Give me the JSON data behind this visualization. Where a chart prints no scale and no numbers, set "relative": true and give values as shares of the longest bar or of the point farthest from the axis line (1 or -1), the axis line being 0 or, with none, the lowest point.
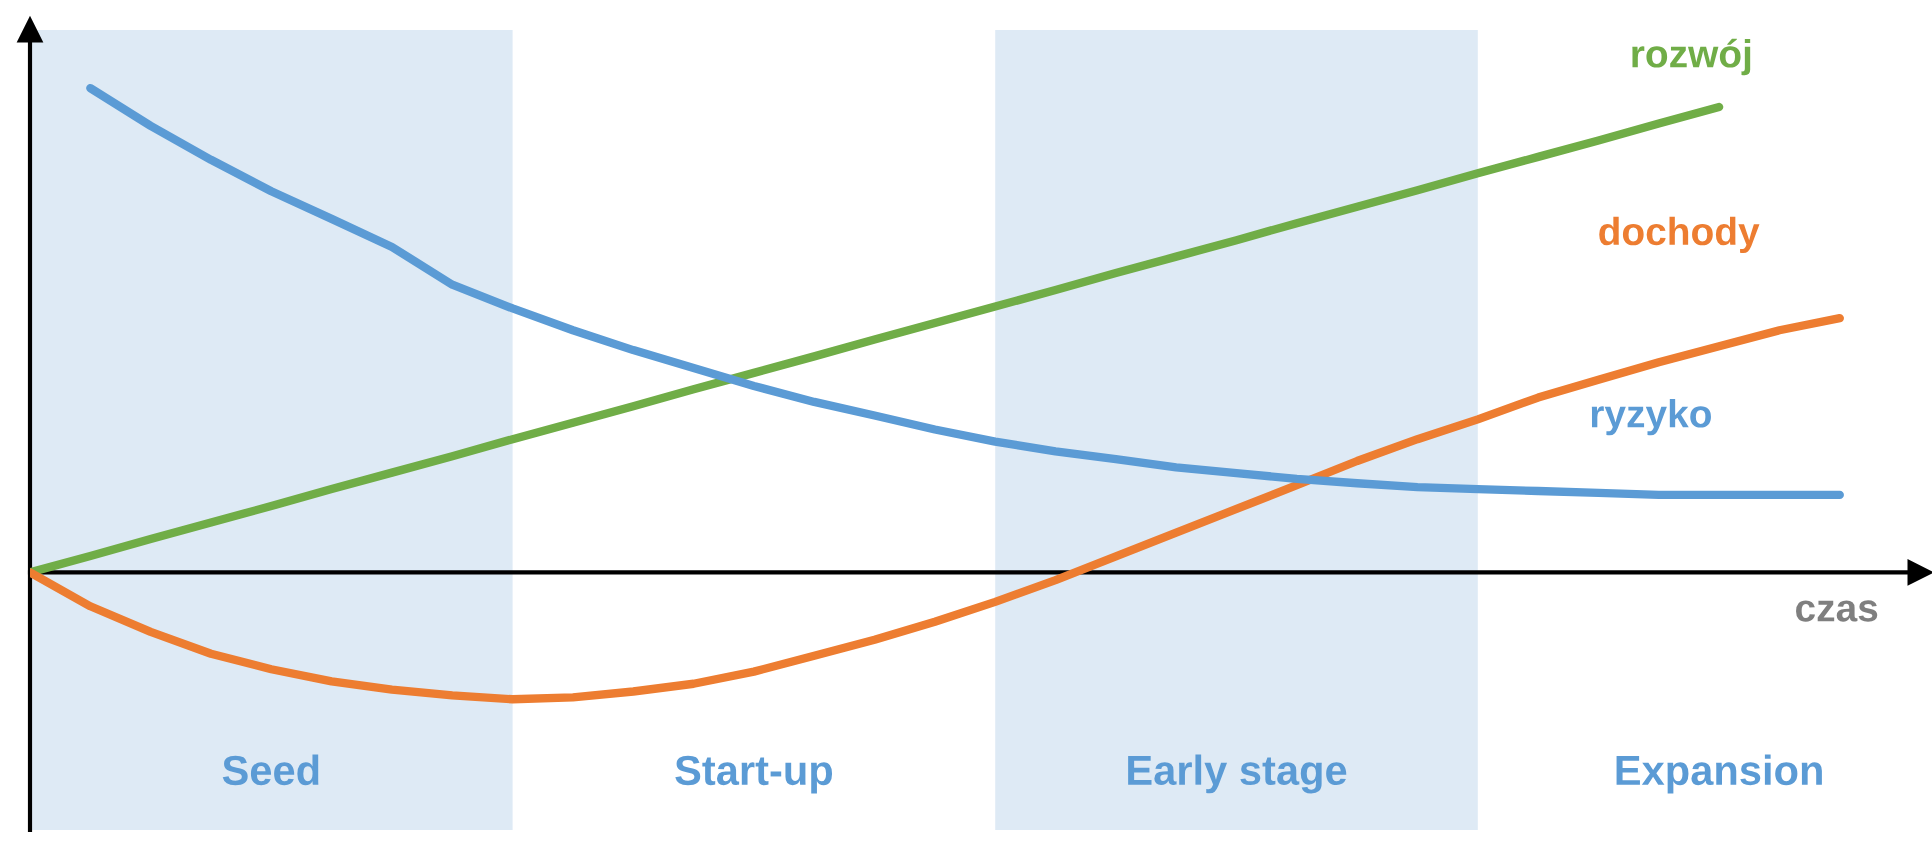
{
  "chart_data": {
    "type": "line",
    "relative": true,
    "xlabel": "czas",
    "legend": false,
    "marker": "none",
    "line_style": "solid",
    "categories": [
      null,
      null,
      null,
      null,
      null,
      null,
      null,
      null,
      null,
      null,
      null,
      null,
      null,
      null,
      null,
      null,
      null,
      null,
      null,
      null,
      null,
      null,
      null,
      null,
      null,
      null,
      null,
      null,
      null,
      null,
      null
    ],
    "annotations": [
      "Seed",
      "Start-up",
      "Early stage",
      "Expansion"
    ],
    "series": [
      {
        "name": "rozwój",
        "color": "#70ad47",
        "values": [
          0,
          0.034,
          0.069,
          0.103,
          0.137,
          0.172,
          0.206,
          0.24,
          0.275,
          0.309,
          0.343,
          0.378,
          0.412,
          0.446,
          0.481,
          0.515,
          0.549,
          0.583,
          0.618,
          0.652,
          0.686,
          0.721,
          0.755,
          0.789,
          0.824,
          0.858,
          0.892,
          0.927,
          0.961,
          null,
          null
        ]
      },
      {
        "name": "dochody",
        "color": "#ed7d31",
        "values": [
          0,
          -0.07,
          -0.123,
          -0.168,
          -0.2,
          -0.225,
          -0.242,
          -0.254,
          -0.262,
          -0.258,
          -0.246,
          -0.23,
          -0.205,
          -0.172,
          -0.139,
          -0.102,
          -0.061,
          -0.016,
          0.033,
          0.082,
          0.131,
          0.18,
          0.23,
          0.275,
          0.316,
          0.361,
          0.398,
          0.434,
          0.467,
          0.5,
          0.525
        ]
      },
      {
        "name": "ryzyko",
        "color": "#5b9bd5",
        "values": [
          null,
          1.0,
          0.922,
          0.852,
          0.787,
          0.73,
          0.672,
          0.594,
          0.545,
          0.5,
          0.459,
          0.422,
          0.385,
          0.352,
          0.324,
          0.295,
          0.27,
          0.25,
          0.234,
          0.217,
          0.205,
          0.193,
          0.184,
          0.176,
          0.172,
          0.168,
          0.164,
          0.16,
          0.16,
          0.16,
          0.16
        ]
      }
    ]
  }
}
